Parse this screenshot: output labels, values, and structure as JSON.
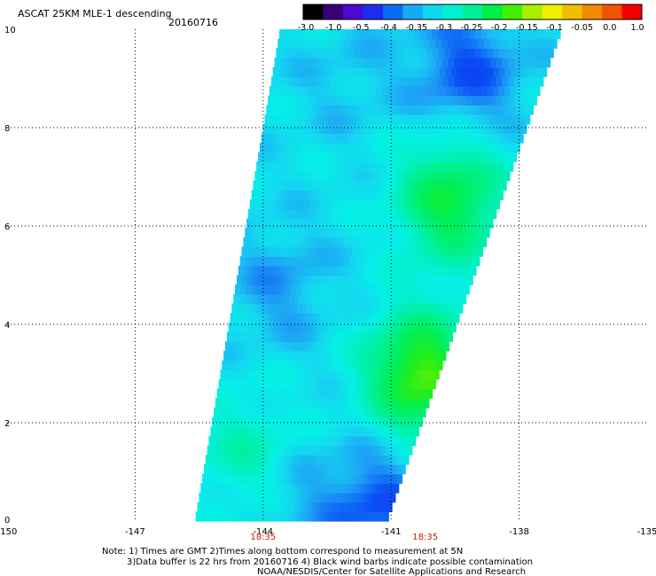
{
  "chart_data": {
    "type": "heatmap",
    "title": "ASCAT 25KM MLE-1 descending",
    "date": "20160716",
    "xlim": [
      -150,
      -135
    ],
    "ylim": [
      0,
      10
    ],
    "x_ticks": [
      -150,
      -147,
      -144,
      -141,
      -138,
      -135
    ],
    "x_tick_labels": [
      "-150",
      "-147",
      "-144",
      "-141",
      "-138",
      "-135"
    ],
    "y_ticks": [
      0,
      2,
      4,
      6,
      8,
      10
    ],
    "y_tick_labels": [
      "0",
      "2",
      "4",
      "6",
      "8",
      "10"
    ],
    "grid": true,
    "colorbar": {
      "labels": [
        "-3.0",
        "-1.0",
        "-0.5",
        "-0.4",
        "-0.35",
        "-0.3",
        "-0.25",
        "-0.2",
        "-0.15",
        "-0.1",
        "-0.05",
        "0.0",
        "1.0"
      ],
      "colors": [
        "#000000",
        "#3a0078",
        "#4a0ad0",
        "#1c2cf0",
        "#0a6cf0",
        "#16aaf2",
        "#10d8f0",
        "#00f0d0",
        "#00f09a",
        "#00ee44",
        "#40f000",
        "#a8f000",
        "#f0f000",
        "#f0c000",
        "#f08a00",
        "#f05400",
        "#f00000"
      ]
    },
    "swath": {
      "bottom_left_lon": -145.6,
      "bottom_right_lon": -141.1,
      "top_left_lon": -143.6,
      "top_right_lon": -137.0,
      "lat_min": 0,
      "lat_max": 10
    },
    "regions": [
      {
        "value": -0.32,
        "desc": "swath background"
      },
      {
        "value": -0.4,
        "lon": -139.2,
        "lat": 9.2
      },
      {
        "value": -0.36,
        "lon": -143.6,
        "lat": 4.8
      },
      {
        "value": -0.36,
        "lon": -143.5,
        "lat": 0.6
      },
      {
        "value": -0.4,
        "lon": -141.3,
        "lat": 0.3
      },
      {
        "value": -0.17,
        "lon": -139.6,
        "lat": 6.5
      },
      {
        "value": -0.12,
        "lon": -140.3,
        "lat": 3.0
      },
      {
        "value": -0.25,
        "lon": -144.3,
        "lat": 1.3
      },
      {
        "value": -0.34,
        "lon": -142.0,
        "lat": 9.0
      }
    ],
    "time_labels": [
      {
        "text": "18:35",
        "lon": -144
      },
      {
        "text": "18:35",
        "lon": -140.2
      }
    ],
    "time_color": "#c81e00"
  },
  "notes": {
    "line1": "Note: 1) Times are GMT 2)Times along bottom correspond to measurement at 5N",
    "line2": "3)Data buffer is 22 hrs from 20160716 4) Black wind barbs indicate possible contamination",
    "line3": "NOAA/NESDIS/Center for Satellite Applications and Research"
  }
}
